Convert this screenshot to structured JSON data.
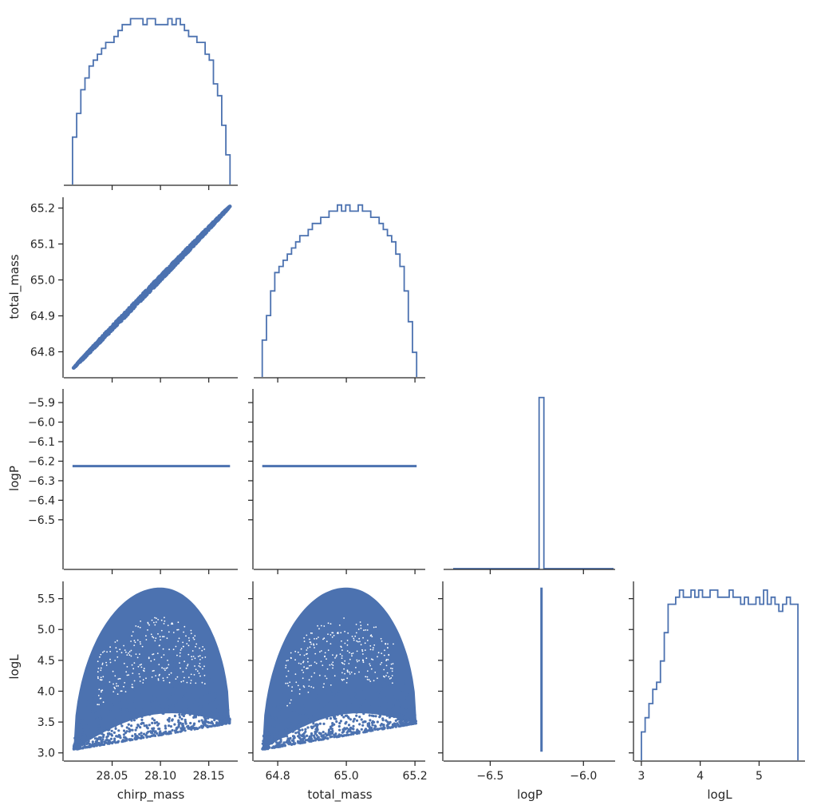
{
  "chart_data": {
    "type": "corner",
    "title": "",
    "color": "#4c72b0",
    "parameters": [
      "chirp_mass",
      "total_mass",
      "logP",
      "logL"
    ],
    "ranges": {
      "chirp_mass": [
        28.0,
        28.18
      ],
      "total_mass": [
        64.73,
        65.23
      ],
      "logP": [
        -6.75,
        -5.83
      ],
      "logL": [
        2.88,
        5.78
      ]
    },
    "ticks": {
      "chirp_mass": [
        {
          "v": 28.05,
          "t": "28.05"
        },
        {
          "v": 28.1,
          "t": "28.10"
        },
        {
          "v": 28.15,
          "t": "28.15"
        }
      ],
      "total_mass_x": [
        {
          "v": 64.8,
          "t": "64.8"
        },
        {
          "v": 65.0,
          "t": "65.0"
        },
        {
          "v": 65.2,
          "t": "65.2"
        }
      ],
      "total_mass_y": [
        {
          "v": 64.8,
          "t": "64.8"
        },
        {
          "v": 64.9,
          "t": "64.9"
        },
        {
          "v": 65.0,
          "t": "65.0"
        },
        {
          "v": 65.1,
          "t": "65.1"
        },
        {
          "v": 65.2,
          "t": "65.2"
        }
      ],
      "logP_x": [
        {
          "v": -6.5,
          "t": "−6.5"
        },
        {
          "v": -6.0,
          "t": "−6.0"
        }
      ],
      "logP_y": [
        {
          "v": -5.9,
          "t": "−5.9"
        },
        {
          "v": -6.0,
          "t": "−6.0"
        },
        {
          "v": -6.1,
          "t": "−6.1"
        },
        {
          "v": -6.2,
          "t": "−6.2"
        },
        {
          "v": -6.3,
          "t": "−6.3"
        },
        {
          "v": -6.4,
          "t": "−6.4"
        },
        {
          "v": -6.5,
          "t": "−6.5"
        }
      ],
      "logL_x": [
        {
          "v": 3,
          "t": "3"
        },
        {
          "v": 4,
          "t": "4"
        },
        {
          "v": 5,
          "t": "5"
        }
      ],
      "logL_y": [
        {
          "v": 3.0,
          "t": "3.0"
        },
        {
          "v": 3.5,
          "t": "3.5"
        },
        {
          "v": 4.0,
          "t": "4.0"
        },
        {
          "v": 4.5,
          "t": "4.5"
        },
        {
          "v": 5.0,
          "t": "5.0"
        },
        {
          "v": 5.5,
          "t": "5.5"
        }
      ]
    },
    "histograms": {
      "chirp_mass": {
        "range": [
          28.009,
          28.172
        ],
        "counts": [
          8,
          12,
          16,
          18,
          20,
          21,
          22,
          23,
          24,
          24,
          25,
          26,
          27,
          27,
          28,
          28,
          28,
          27,
          28,
          28,
          27,
          27,
          27,
          28,
          27,
          28,
          27,
          26,
          25,
          25,
          24,
          24,
          22,
          21,
          17,
          15,
          10,
          5
        ],
        "ymax": 29
      },
      "total_mass": {
        "range": [
          64.755,
          65.205
        ],
        "counts": [
          6,
          10,
          14,
          17,
          18,
          19,
          20,
          21,
          22,
          23,
          23,
          24,
          25,
          25,
          26,
          26,
          27,
          27,
          28,
          27,
          28,
          27,
          27,
          28,
          27,
          27,
          26,
          26,
          25,
          24,
          23,
          22,
          20,
          18,
          14,
          9,
          4
        ],
        "ymax": 29
      },
      "logP": {
        "spike_at": -6.225,
        "spike_count": 1000,
        "ymax": 1050
      },
      "logL": {
        "range": [
          3.0,
          5.66
        ],
        "counts": [
          4,
          6,
          8,
          10,
          11,
          14,
          18,
          22,
          22,
          23,
          24,
          23,
          23,
          24,
          23,
          24,
          23,
          23,
          24,
          24,
          23,
          23,
          23,
          24,
          23,
          23,
          22,
          23,
          22,
          22,
          23,
          22,
          24,
          22,
          23,
          22,
          21,
          22,
          23,
          22,
          22
        ],
        "ymax": 25
      }
    },
    "scatter": {
      "total_mass_vs_chirp_mass": {
        "x_range": [
          28.01,
          28.172
        ],
        "y_range": [
          64.755,
          65.205
        ],
        "relation": "linear band"
      },
      "logP_vs_chirp_mass": {
        "constant_logP": -6.225
      },
      "logP_vs_total_mass": {
        "constant_logP": -6.225
      },
      "logL_vs_chirp_mass": {
        "peak_x": 28.1,
        "peak_y": 5.68,
        "left": [
          28.01,
          3.05
        ],
        "right": [
          28.172,
          3.48
        ]
      },
      "logL_vs_total_mass": {
        "peak_x": 65.0,
        "peak_y": 5.68,
        "left": [
          64.755,
          3.05
        ],
        "right": [
          65.205,
          3.48
        ]
      },
      "logL_vs_logP": {
        "constant_logP": -6.225,
        "logL_range": [
          3.02,
          5.68
        ]
      }
    }
  }
}
